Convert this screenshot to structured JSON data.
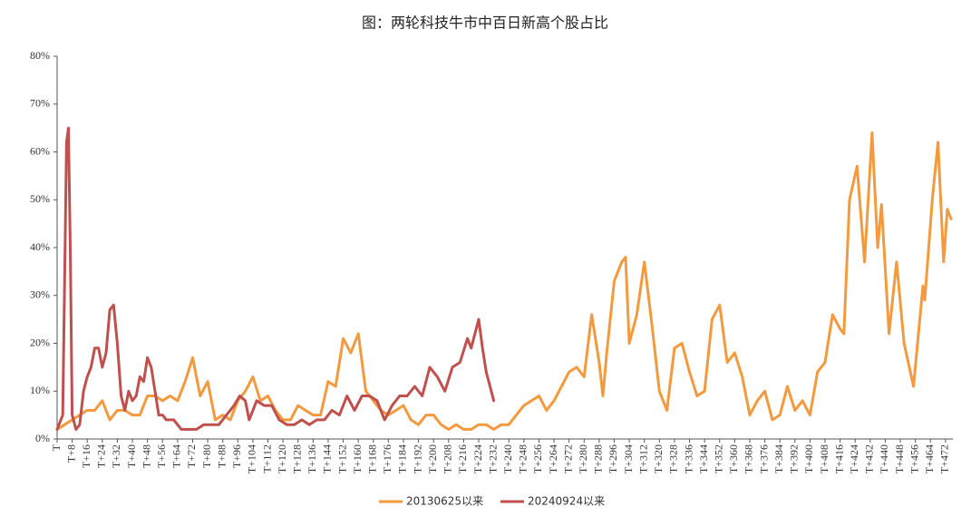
{
  "chart_data": {
    "type": "line",
    "title": "图：两轮科技牛市中百日新高个股占比",
    "xlim": [
      0,
      476
    ],
    "ylim": [
      0,
      80
    ],
    "yticks": [
      {
        "value": 0,
        "label": "0%"
      },
      {
        "value": 10,
        "label": "10%"
      },
      {
        "value": 20,
        "label": "20%"
      },
      {
        "value": 30,
        "label": "30%"
      },
      {
        "value": 40,
        "label": "40%"
      },
      {
        "value": 50,
        "label": "50%"
      },
      {
        "value": 60,
        "label": "60%"
      },
      {
        "value": 70,
        "label": "70%"
      },
      {
        "value": 80,
        "label": "80%"
      }
    ],
    "xticks": [
      {
        "value": 0,
        "label": "T"
      },
      {
        "value": 8,
        "label": "T+8"
      },
      {
        "value": 16,
        "label": "T+16"
      },
      {
        "value": 24,
        "label": "T+24"
      },
      {
        "value": 32,
        "label": "T+32"
      },
      {
        "value": 40,
        "label": "T+40"
      },
      {
        "value": 48,
        "label": "T+48"
      },
      {
        "value": 56,
        "label": "T+56"
      },
      {
        "value": 64,
        "label": "T+64"
      },
      {
        "value": 72,
        "label": "T+72"
      },
      {
        "value": 80,
        "label": "T+80"
      },
      {
        "value": 88,
        "label": "T+88"
      },
      {
        "value": 96,
        "label": "T+96"
      },
      {
        "value": 104,
        "label": "T+104"
      },
      {
        "value": 112,
        "label": "T+112"
      },
      {
        "value": 120,
        "label": "T+120"
      },
      {
        "value": 128,
        "label": "T+128"
      },
      {
        "value": 136,
        "label": "T+136"
      },
      {
        "value": 144,
        "label": "T+144"
      },
      {
        "value": 152,
        "label": "T+152"
      },
      {
        "value": 160,
        "label": "T+160"
      },
      {
        "value": 168,
        "label": "T+168"
      },
      {
        "value": 176,
        "label": "T+176"
      },
      {
        "value": 184,
        "label": "T+184"
      },
      {
        "value": 192,
        "label": "T+192"
      },
      {
        "value": 200,
        "label": "T+200"
      },
      {
        "value": 208,
        "label": "T+208"
      },
      {
        "value": 216,
        "label": "T+216"
      },
      {
        "value": 224,
        "label": "T+224"
      },
      {
        "value": 232,
        "label": "T+232"
      },
      {
        "value": 240,
        "label": "T+240"
      },
      {
        "value": 248,
        "label": "T+248"
      },
      {
        "value": 256,
        "label": "T+256"
      },
      {
        "value": 264,
        "label": "T+264"
      },
      {
        "value": 272,
        "label": "T+272"
      },
      {
        "value": 280,
        "label": "T+280"
      },
      {
        "value": 288,
        "label": "T+288"
      },
      {
        "value": 296,
        "label": "T+296"
      },
      {
        "value": 304,
        "label": "T+304"
      },
      {
        "value": 312,
        "label": "T+312"
      },
      {
        "value": 320,
        "label": "T+320"
      },
      {
        "value": 328,
        "label": "T+328"
      },
      {
        "value": 336,
        "label": "T+336"
      },
      {
        "value": 344,
        "label": "T+344"
      },
      {
        "value": 352,
        "label": "T+352"
      },
      {
        "value": 360,
        "label": "T+360"
      },
      {
        "value": 368,
        "label": "T+368"
      },
      {
        "value": 376,
        "label": "T+376"
      },
      {
        "value": 384,
        "label": "T+384"
      },
      {
        "value": 392,
        "label": "T+392"
      },
      {
        "value": 400,
        "label": "T+400"
      },
      {
        "value": 408,
        "label": "T+408"
      },
      {
        "value": 416,
        "label": "T+416"
      },
      {
        "value": 424,
        "label": "T+424"
      },
      {
        "value": 432,
        "label": "T+432"
      },
      {
        "value": 440,
        "label": "T+440"
      },
      {
        "value": 448,
        "label": "T+448"
      },
      {
        "value": 456,
        "label": "T+456"
      },
      {
        "value": 464,
        "label": "T+464"
      },
      {
        "value": 472,
        "label": "T+472"
      }
    ],
    "series": [
      {
        "name": "20130625以来",
        "color": "#f39a3e",
        "x": [
          0,
          4,
          8,
          12,
          16,
          20,
          24,
          28,
          32,
          36,
          40,
          44,
          48,
          52,
          56,
          60,
          64,
          68,
          72,
          76,
          80,
          84,
          88,
          92,
          96,
          100,
          104,
          108,
          112,
          116,
          120,
          124,
          128,
          132,
          136,
          140,
          144,
          148,
          152,
          156,
          160,
          164,
          168,
          172,
          176,
          180,
          184,
          188,
          192,
          196,
          200,
          204,
          208,
          212,
          216,
          220,
          224,
          228,
          232,
          236,
          240,
          244,
          248,
          252,
          256,
          260,
          264,
          268,
          272,
          276,
          280,
          284,
          288,
          290,
          292,
          296,
          300,
          302,
          304,
          308,
          312,
          316,
          320,
          324,
          328,
          332,
          336,
          340,
          344,
          348,
          352,
          356,
          360,
          364,
          368,
          372,
          376,
          380,
          384,
          388,
          392,
          396,
          400,
          404,
          408,
          412,
          416,
          418,
          421,
          425,
          429,
          433,
          436,
          438,
          442,
          446,
          450,
          455,
          460,
          461,
          465,
          468,
          471,
          473,
          475
        ],
        "values": [
          2,
          3,
          4,
          5,
          6,
          6,
          8,
          4,
          6,
          6,
          5,
          5,
          9,
          9,
          8,
          9,
          8,
          12,
          17,
          9,
          12,
          4,
          5,
          4,
          8,
          10,
          13,
          8,
          9,
          6,
          4,
          4,
          7,
          6,
          5,
          5,
          12,
          11,
          21,
          18,
          22,
          10,
          8,
          6,
          5,
          6,
          7,
          4,
          3,
          5,
          5,
          3,
          2,
          3,
          2,
          2,
          3,
          3,
          2,
          3,
          3,
          5,
          7,
          8,
          9,
          6,
          8,
          11,
          14,
          15,
          13,
          26,
          16,
          9,
          18,
          33,
          37,
          38,
          20,
          26,
          37,
          24,
          10,
          6,
          19,
          20,
          14,
          9,
          10,
          25,
          28,
          16,
          18,
          13,
          5,
          8,
          10,
          4,
          5,
          11,
          6,
          8,
          5,
          14,
          16,
          26,
          23,
          22,
          50,
          57,
          37,
          64,
          40,
          49,
          22,
          37,
          20,
          11,
          32,
          29,
          50,
          62,
          37,
          48,
          46
        ]
      },
      {
        "name": "20240924以来",
        "color": "#c0504d",
        "x": [
          0,
          3,
          5,
          6,
          7,
          8,
          10,
          12,
          14,
          16,
          18,
          20,
          22,
          24,
          26,
          28,
          30,
          32,
          34,
          36,
          38,
          40,
          42,
          44,
          46,
          48,
          50,
          52,
          54,
          56,
          58,
          62,
          66,
          70,
          74,
          78,
          82,
          86,
          90,
          94,
          97,
          100,
          102,
          106,
          110,
          114,
          118,
          122,
          126,
          130,
          134,
          138,
          142,
          146,
          150,
          154,
          158,
          162,
          166,
          170,
          174,
          178,
          182,
          186,
          190,
          194,
          198,
          202,
          206,
          210,
          214,
          218,
          220,
          224,
          226,
          228,
          230,
          232
        ],
        "values": [
          2,
          5,
          62,
          65,
          40,
          5,
          2,
          3,
          10,
          13,
          15,
          19,
          19,
          15,
          18,
          27,
          28,
          20,
          9,
          6,
          10,
          8,
          9,
          13,
          12,
          17,
          15,
          10,
          5,
          5,
          4,
          4,
          2,
          2,
          2,
          3,
          3,
          3,
          5,
          7,
          9,
          8,
          4,
          8,
          7,
          7,
          4,
          3,
          3,
          4,
          3,
          4,
          4,
          6,
          5,
          9,
          6,
          9,
          9,
          8,
          4,
          7,
          9,
          9,
          11,
          9,
          15,
          13,
          10,
          15,
          16,
          21,
          19,
          25,
          19,
          14,
          11,
          8
        ]
      }
    ]
  }
}
